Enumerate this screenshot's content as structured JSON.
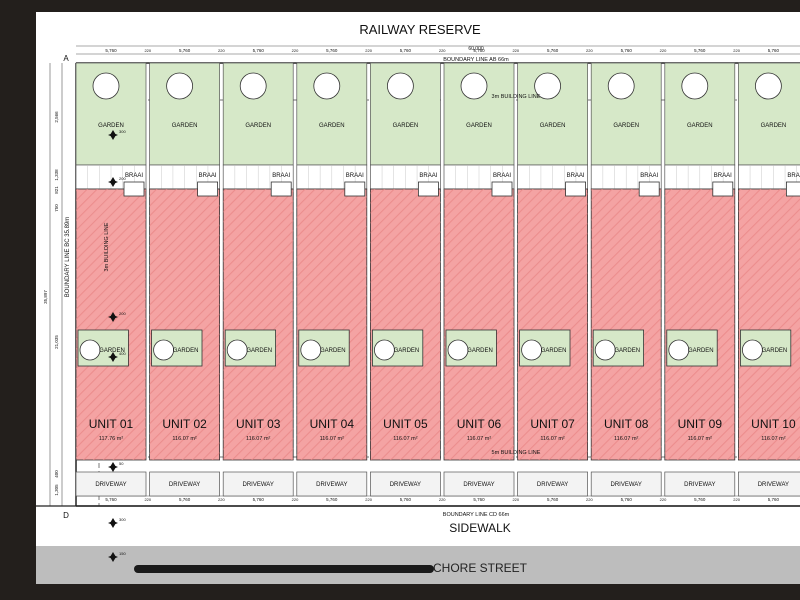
{
  "title": "RAILWAY RESERVE",
  "overall_dim": "60,000",
  "boundary_top": "BOUNDARY LINE AB 66m",
  "boundary_bottom": "BOUNDARY LINE CD 66m",
  "boundary_left": "BOUNDARY LINE BC 35.89m",
  "building_line_rear": "3m BUILDING LINE",
  "building_line_side": "3m BUILDING LINE",
  "building_line_front": "5m BUILDING LINE",
  "sidewalk": "SIDEWALK",
  "street": "CHORE STREET",
  "corner_labels": {
    "a": "A",
    "d": "D"
  },
  "plot_dim": "5,760",
  "gap_dim": "220",
  "left_dims": [
    "2,566",
    "1,338",
    "821",
    "750",
    "35,897",
    "21,035",
    "400",
    "1,305"
  ],
  "marker_values": [
    "300",
    "200",
    "200",
    "400",
    "50",
    "300",
    "150"
  ],
  "labels": {
    "garden": "GARDEN",
    "braai": "BRAAI",
    "driveway": "DRIVEWAY"
  },
  "units": [
    {
      "name": "UNIT 01",
      "area": "117.76 m²"
    },
    {
      "name": "UNIT 02",
      "area": "116.07 m²"
    },
    {
      "name": "UNIT 03",
      "area": "116.07 m²"
    },
    {
      "name": "UNIT 04",
      "area": "116.07 m²"
    },
    {
      "name": "UNIT 05",
      "area": "116.07 m²"
    },
    {
      "name": "UNIT 06",
      "area": "116.07 m²"
    },
    {
      "name": "UNIT 07",
      "area": "116.07 m²"
    },
    {
      "name": "UNIT 08",
      "area": "116.07 m²"
    },
    {
      "name": "UNIT 09",
      "area": "116.07 m²"
    },
    {
      "name": "UNIT 10",
      "area": "116.07 m²"
    }
  ],
  "colors": {
    "garden": "#d6e8c8",
    "unit": "#f4a3a3",
    "unit_hatch": "#e88484",
    "street": "#bdbdbd",
    "frame": "#231f1c"
  }
}
